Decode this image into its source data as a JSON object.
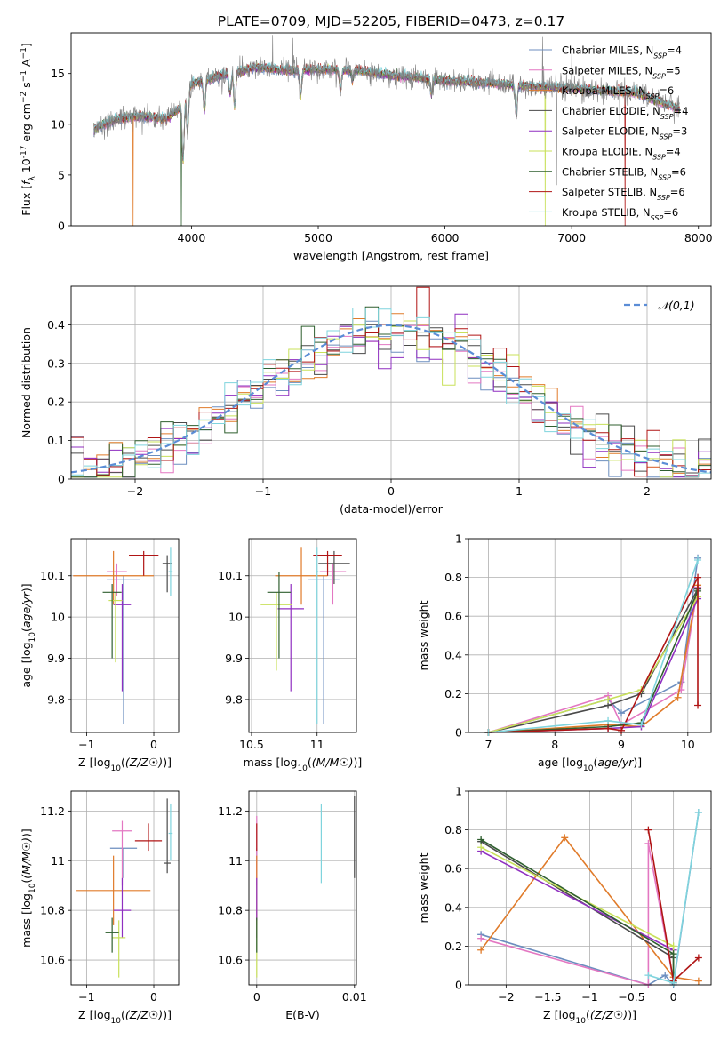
{
  "figure_title": "PLATE=0709, MJD=52205, FIBERID=0473, z=0.17",
  "series_styles": [
    {
      "name": "Chabrier MILES",
      "nssp": "4",
      "color": "#6c8ebf"
    },
    {
      "name": "Salpeter MILES",
      "nssp": "5",
      "color": "#e377c2"
    },
    {
      "name": "Kroupa MILES",
      "nssp": "6",
      "color": "#e07b2a"
    },
    {
      "name": "Chabrier ELODIE",
      "nssp": "4",
      "color": "#4a4a4a"
    },
    {
      "name": "Salpeter ELODIE",
      "nssp": "3",
      "color": "#8f2fc0"
    },
    {
      "name": "Kroupa ELODIE",
      "nssp": "4",
      "color": "#c8e05a"
    },
    {
      "name": "Chabrier STELIB",
      "nssp": "6",
      "color": "#2f5f2f"
    },
    {
      "name": "Salpeter STELIB",
      "nssp": "6",
      "color": "#b01515"
    },
    {
      "name": "Kroupa STELIB",
      "nssp": "6",
      "color": "#7fd4dd"
    }
  ],
  "chart_data": [
    {
      "id": "spectrum",
      "type": "line",
      "xlabel": "wavelength [Angstrom, rest frame]",
      "ylabel": "Flux [f_λ 10^-17 erg cm^-2 s^-1 A^-1]",
      "xlim": [
        3050,
        8100
      ],
      "ylim": [
        0,
        19
      ],
      "xticks": [
        4000,
        5000,
        6000,
        7000,
        8000
      ],
      "yticks": [
        0,
        5,
        10,
        15
      ],
      "legend_position": "top-right",
      "data_color": "#808080",
      "continuum": [
        [
          3230,
          9.5
        ],
        [
          3400,
          10.5
        ],
        [
          3600,
          10.8
        ],
        [
          3800,
          10.5
        ],
        [
          3900,
          11.5
        ],
        [
          4000,
          14.0
        ],
        [
          4300,
          15.0
        ],
        [
          4500,
          15.6
        ],
        [
          4800,
          15.3
        ],
        [
          5000,
          15.4
        ],
        [
          5300,
          15.3
        ],
        [
          5600,
          14.8
        ],
        [
          6000,
          14.3
        ],
        [
          6500,
          13.9
        ],
        [
          7000,
          13.5
        ],
        [
          7500,
          13.1
        ],
        [
          7850,
          11.5
        ]
      ],
      "absorptions": [
        [
          3934,
          6.0
        ],
        [
          3969,
          4.0
        ],
        [
          4102,
          3.0
        ],
        [
          4304,
          2.0
        ],
        [
          4341,
          3.5
        ],
        [
          4861,
          2.5
        ],
        [
          5175,
          2.0
        ],
        [
          5270,
          1.0
        ],
        [
          5893,
          1.5
        ],
        [
          6563,
          3.0
        ]
      ],
      "spikes": [
        [
          4640,
          18.8
        ],
        [
          4800,
          18.5
        ],
        [
          6770,
          18.6
        ],
        [
          6880,
          4.0
        ],
        [
          7000,
          18.0
        ],
        [
          7380,
          10.0
        ]
      ],
      "model_drops": [
        [
          3540,
          2
        ],
        [
          3920,
          6
        ],
        [
          6790,
          5
        ],
        [
          7420,
          7
        ]
      ]
    },
    {
      "id": "residuals",
      "type": "area",
      "xlabel": "(data-model)/error",
      "ylabel": "Normed distribution",
      "xlim": [
        -2.5,
        2.5
      ],
      "ylim": [
        0,
        0.5
      ],
      "xticks": [
        -2,
        -1,
        0,
        1,
        2
      ],
      "yticks": [
        0.0,
        0.1,
        0.2,
        0.3,
        0.4
      ],
      "grid": true,
      "legend_position": "top-right",
      "normal_label": "𝒩(0,1)",
      "normal_color": "#5b8dd6",
      "bin_width": 0.1
    },
    {
      "id": "age-vs-Z",
      "type": "scatter",
      "xlabel": "Z [log10(Z/Z☉)]",
      "ylabel": "age [log10(age/yr)]",
      "xlim": [
        -1.23,
        0.37
      ],
      "ylim": [
        9.72,
        10.19
      ],
      "xticks": [
        -1,
        0
      ],
      "yticks": [
        9.8,
        9.9,
        10.0,
        10.1
      ],
      "grid": true,
      "points": [
        {
          "x": -0.45,
          "y": 10.09,
          "xerr": 0.25,
          "ylo": 9.74,
          "yhi": 10.1
        },
        {
          "x": -0.55,
          "y": 10.11,
          "xerr": 0.15,
          "ylo": 10.05,
          "yhi": 10.13
        },
        {
          "x": -0.6,
          "y": 10.1,
          "xerr": 0.6,
          "ylo": 10.03,
          "yhi": 10.16
        },
        {
          "x": 0.2,
          "y": 10.13,
          "xerr": 0.07,
          "ylo": 10.06,
          "yhi": 10.15
        },
        {
          "x": -0.47,
          "y": 10.03,
          "xerr": 0.13,
          "ylo": 9.82,
          "yhi": 10.08
        },
        {
          "x": -0.57,
          "y": 10.04,
          "xerr": 0.1,
          "ylo": 9.89,
          "yhi": 10.06
        },
        {
          "x": -0.62,
          "y": 10.06,
          "xerr": 0.14,
          "ylo": 9.9,
          "yhi": 10.08
        },
        {
          "x": -0.15,
          "y": 10.15,
          "xerr": 0.22,
          "ylo": 10.1,
          "yhi": 10.16
        },
        {
          "x": 0.25,
          "y": 10.11,
          "xerr": 0.03,
          "ylo": 10.05,
          "yhi": 10.17
        }
      ]
    },
    {
      "id": "age-vs-mass",
      "type": "scatter",
      "xlabel": "mass [log10(M/M☉)]",
      "ylabel": "",
      "xlim": [
        10.48,
        11.3
      ],
      "ylim": [
        9.72,
        10.19
      ],
      "xticks": [
        10.5,
        11.0
      ],
      "yticks": [
        9.8,
        9.9,
        10.0,
        10.1
      ],
      "grid": true,
      "points": [
        {
          "x": 11.05,
          "y": 10.09,
          "xerr": 0.12,
          "ylo": 9.74,
          "yhi": 10.1
        },
        {
          "x": 11.12,
          "y": 10.11,
          "xerr": 0.1,
          "ylo": 10.03,
          "yhi": 10.13
        },
        {
          "x": 10.88,
          "y": 10.1,
          "xerr": 0.2,
          "ylo": 10.03,
          "yhi": 10.17
        },
        {
          "x": 11.13,
          "y": 10.13,
          "xerr": 0.12,
          "ylo": 10.08,
          "yhi": 10.16
        },
        {
          "x": 10.8,
          "y": 10.02,
          "xerr": 0.1,
          "ylo": 9.82,
          "yhi": 10.08
        },
        {
          "x": 10.69,
          "y": 10.03,
          "xerr": 0.12,
          "ylo": 9.87,
          "yhi": 10.06
        },
        {
          "x": 10.71,
          "y": 10.06,
          "xerr": 0.09,
          "ylo": 9.9,
          "yhi": 10.11
        },
        {
          "x": 11.08,
          "y": 10.15,
          "xerr": 0.11,
          "ylo": 10.1,
          "yhi": 10.16
        },
        {
          "x": 11.0,
          "y": 10.11,
          "xerr": 0.01,
          "ylo": 9.74,
          "yhi": 10.17
        }
      ]
    },
    {
      "id": "massweight-vs-age",
      "type": "line",
      "xlabel": "age [log10(age/yr)]",
      "ylabel": "mass weight",
      "xlim": [
        6.7,
        10.35
      ],
      "ylim": [
        0,
        1.0
      ],
      "xticks": [
        7,
        8,
        9,
        10
      ],
      "yticks": [
        0.0,
        0.2,
        0.4,
        0.6,
        0.8,
        1.0
      ],
      "grid": true,
      "series": [
        {
          "points": [
            [
              7.0,
              0.0
            ],
            [
              8.8,
              0.17
            ],
            [
              9.0,
              0.1
            ],
            [
              9.9,
              0.26
            ],
            [
              10.15,
              0.9
            ]
          ]
        },
        {
          "points": [
            [
              7.0,
              0.0
            ],
            [
              8.8,
              0.19
            ],
            [
              9.0,
              0.04
            ],
            [
              9.9,
              0.22
            ],
            [
              10.15,
              0.75
            ]
          ]
        },
        {
          "points": [
            [
              7.0,
              0.0
            ],
            [
              8.8,
              0.04
            ],
            [
              9.3,
              0.03
            ],
            [
              9.85,
              0.18
            ],
            [
              10.15,
              0.76
            ]
          ]
        },
        {
          "points": [
            [
              7.0,
              0.0
            ],
            [
              8.8,
              0.14
            ],
            [
              9.3,
              0.2
            ],
            [
              10.15,
              0.74
            ]
          ]
        },
        {
          "points": [
            [
              7.0,
              0.0
            ],
            [
              8.8,
              0.02
            ],
            [
              9.3,
              0.03
            ],
            [
              10.15,
              0.69
            ]
          ]
        },
        {
          "points": [
            [
              7.0,
              0.0
            ],
            [
              8.8,
              0.17
            ],
            [
              9.3,
              0.22
            ],
            [
              10.15,
              0.7
            ]
          ]
        },
        {
          "points": [
            [
              7.0,
              0.0
            ],
            [
              8.8,
              0.03
            ],
            [
              9.3,
              0.05
            ],
            [
              10.15,
              0.73
            ]
          ]
        },
        {
          "points": [
            [
              7.0,
              0.0
            ],
            [
              8.8,
              0.02
            ],
            [
              9.0,
              0.01
            ],
            [
              10.15,
              0.8
            ],
            [
              10.15,
              0.14
            ]
          ]
        },
        {
          "points": [
            [
              7.0,
              0.0
            ],
            [
              8.8,
              0.06
            ],
            [
              9.3,
              0.04
            ],
            [
              10.15,
              0.89
            ]
          ]
        }
      ]
    },
    {
      "id": "mass-vs-Z",
      "type": "scatter",
      "xlabel": "Z [log10(Z/Z☉)]",
      "ylabel": "mass [log10(M/M☉)]",
      "xlim": [
        -1.23,
        0.37
      ],
      "ylim": [
        10.5,
        11.28
      ],
      "xticks": [
        -1,
        0
      ],
      "yticks": [
        10.6,
        10.8,
        11.0,
        11.2
      ],
      "grid": true,
      "points": [
        {
          "x": -0.45,
          "y": 11.05,
          "xerr": 0.2,
          "ylo": 10.93,
          "yhi": 11.05
        },
        {
          "x": -0.47,
          "y": 11.12,
          "xerr": 0.15,
          "ylo": 10.9,
          "yhi": 11.16
        },
        {
          "x": -0.6,
          "y": 10.88,
          "xerr": 0.55,
          "ylo": 10.74,
          "yhi": 11.02
        },
        {
          "x": 0.2,
          "y": 10.99,
          "xerr": 0.05,
          "ylo": 10.95,
          "yhi": 11.25
        },
        {
          "x": -0.47,
          "y": 10.8,
          "xerr": 0.13,
          "ylo": 10.69,
          "yhi": 10.93
        },
        {
          "x": -0.52,
          "y": 10.69,
          "xerr": 0.1,
          "ylo": 10.53,
          "yhi": 10.76
        },
        {
          "x": -0.62,
          "y": 10.71,
          "xerr": 0.1,
          "ylo": 10.63,
          "yhi": 10.77
        },
        {
          "x": -0.08,
          "y": 11.08,
          "xerr": 0.2,
          "ylo": 11.04,
          "yhi": 11.15
        },
        {
          "x": 0.25,
          "y": 11.11,
          "xerr": 0.03,
          "ylo": 11.0,
          "yhi": 11.23
        }
      ]
    },
    {
      "id": "mass-vs-EBV",
      "type": "scatter",
      "xlabel": "E(B-V)",
      "ylabel": "",
      "xlim": [
        -0.0008,
        0.0102
      ],
      "ylim": [
        10.5,
        11.28
      ],
      "xticks": [
        0.0,
        0.01
      ],
      "yticks": [
        10.6,
        10.8,
        11.0,
        11.2
      ],
      "grid": true,
      "points": [
        {
          "x": 0.0,
          "y": 11.05,
          "xerr": 0,
          "ylo": 10.93,
          "yhi": 11.05
        },
        {
          "x": 0.0,
          "y": 11.12,
          "xerr": 0,
          "ylo": 10.9,
          "yhi": 11.18
        },
        {
          "x": 0.0,
          "y": 10.88,
          "xerr": 0,
          "ylo": 10.74,
          "yhi": 11.02
        },
        {
          "x": 0.01,
          "y": 10.99,
          "xerr": 0,
          "ylo": 10.93,
          "yhi": 11.26
        },
        {
          "x": 0.0,
          "y": 10.8,
          "xerr": 0,
          "ylo": 10.69,
          "yhi": 10.93
        },
        {
          "x": 0.0,
          "y": 10.6,
          "xerr": 0,
          "ylo": 10.53,
          "yhi": 10.76
        },
        {
          "x": 0.0,
          "y": 10.71,
          "xerr": 0,
          "ylo": 10.63,
          "yhi": 10.77
        },
        {
          "x": 0.0,
          "y": 11.08,
          "xerr": 0,
          "ylo": 11.04,
          "yhi": 11.15
        },
        {
          "x": 0.0066,
          "y": 11.05,
          "xerr": 0,
          "ylo": 10.91,
          "yhi": 11.23
        }
      ]
    },
    {
      "id": "massweight-vs-Z",
      "type": "line",
      "xlabel": "Z [log10(Z/Z☉)]",
      "ylabel": "mass weight",
      "xlim": [
        -2.45,
        0.45
      ],
      "ylim": [
        0,
        1.0
      ],
      "xticks": [
        -2.0,
        -1.5,
        -1.0,
        -0.5,
        0.0
      ],
      "yticks": [
        0.0,
        0.2,
        0.4,
        0.6,
        0.8,
        1.0
      ],
      "grid": true,
      "series": [
        {
          "points": [
            [
              -2.3,
              0.26
            ],
            [
              -0.3,
              0.0
            ],
            [
              -0.1,
              0.05
            ],
            [
              0.0,
              0.0
            ],
            [
              0.3,
              0.89
            ]
          ]
        },
        {
          "points": [
            [
              -2.3,
              0.24
            ],
            [
              -0.3,
              0.0
            ],
            [
              -0.3,
              0.73
            ],
            [
              0.0,
              0.02
            ]
          ]
        },
        {
          "points": [
            [
              -2.3,
              0.18
            ],
            [
              -1.3,
              0.76
            ],
            [
              0.0,
              0.04
            ],
            [
              0.3,
              0.02
            ]
          ]
        },
        {
          "points": [
            [
              -2.3,
              0.74
            ],
            [
              0.0,
              0.14
            ],
            [
              0.0,
              0.02
            ]
          ]
        },
        {
          "points": [
            [
              -2.3,
              0.69
            ],
            [
              0.0,
              0.18
            ],
            [
              0.0,
              0.01
            ]
          ]
        },
        {
          "points": [
            [
              -2.3,
              0.71
            ],
            [
              0.0,
              0.2
            ],
            [
              0.0,
              0.02
            ]
          ]
        },
        {
          "points": [
            [
              -2.3,
              0.75
            ],
            [
              0.0,
              0.16
            ],
            [
              0.0,
              0.01
            ]
          ]
        },
        {
          "points": [
            [
              -0.3,
              0.8
            ],
            [
              0.0,
              0.02
            ],
            [
              0.3,
              0.14
            ]
          ]
        },
        {
          "points": [
            [
              -0.3,
              0.05
            ],
            [
              0.0,
              0.01
            ],
            [
              0.3,
              0.89
            ]
          ]
        }
      ]
    }
  ]
}
